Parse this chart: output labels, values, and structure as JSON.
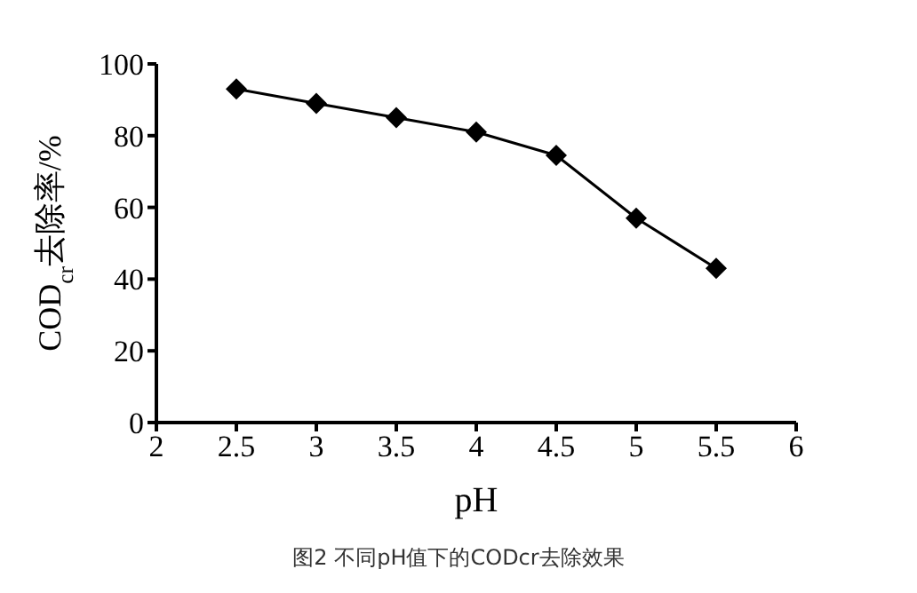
{
  "chart_data": {
    "type": "line",
    "x": [
      2.5,
      3,
      3.5,
      4,
      4.5,
      5,
      5.5
    ],
    "series": [
      {
        "color": "#000000",
        "values": [
          93,
          89,
          85,
          81,
          74.5,
          57,
          43
        ]
      }
    ],
    "xlim": [
      2,
      6
    ],
    "xticks": [
      2,
      2.5,
      3,
      3.5,
      4,
      4.5,
      5,
      5.5,
      6
    ],
    "ylim": [
      0,
      100
    ],
    "yticks": [
      0,
      20,
      40,
      60,
      80,
      100
    ],
    "xlabel": "pH",
    "ylabel": "COD$_{cr}$去除率/%",
    "marker": "diamond",
    "line_style": "solid",
    "grid": false,
    "legend": false,
    "annotations": [
      "图2 不同pH值下的CODcr去除效果"
    ]
  }
}
